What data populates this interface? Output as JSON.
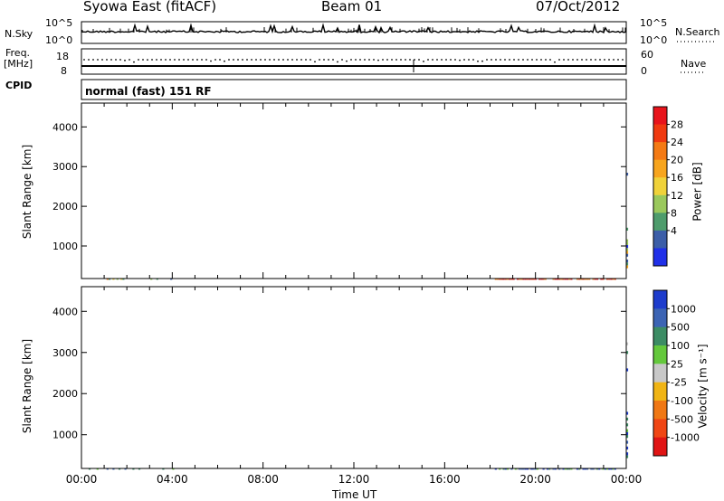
{
  "header": {
    "station": "Syowa East (fitACF)",
    "beam": "Beam 01",
    "date": "07/Oct/2012"
  },
  "noise_panel": {
    "left_label": "N.Sky",
    "right_label": "N.Search",
    "left_ticks": [
      "10^5",
      "10^0"
    ],
    "right_ticks": [
      "10^5",
      "10^0"
    ]
  },
  "freq_panel": {
    "left_label_line1": "Freq.",
    "left_label_line2": "[MHz]",
    "right_label": "Nave",
    "left_ticks": [
      "18",
      "8"
    ],
    "right_ticks": [
      "60",
      "0"
    ]
  },
  "cpid": {
    "label": "CPID",
    "mode_text": "normal (fast) 151 RF"
  },
  "chart_data": [
    {
      "type": "heatmap",
      "name": "power",
      "ylabel": "Slant Range [km]",
      "xlabel": "",
      "y_ticks": [
        1000,
        2000,
        3000,
        4000
      ],
      "ylim": [
        180,
        4600
      ],
      "xlim_hours": [
        0,
        24
      ],
      "colorbar_label": "Power [dB]",
      "colorbar_ticks": [
        "28",
        "24",
        "20",
        "16",
        "12",
        "8",
        "4"
      ],
      "colorbar_colors": [
        "#e8141c",
        "#f03a10",
        "#f47a14",
        "#f7a51e",
        "#f0d23a",
        "#9ac85c",
        "#4e9c6c",
        "#3c5ea8",
        "#2030e8"
      ]
    },
    {
      "type": "heatmap",
      "name": "velocity",
      "ylabel": "Slant Range [km]",
      "xlabel": "Time UT",
      "y_ticks": [
        1000,
        2000,
        3000,
        4000
      ],
      "ylim": [
        180,
        4600
      ],
      "xlim_hours": [
        0,
        24
      ],
      "colorbar_label": "Velocity [m s⁻¹]",
      "colorbar_ticks": [
        "1000",
        "500",
        "100",
        "25",
        "-25",
        "-100",
        "-500",
        "-1000"
      ],
      "colorbar_colors": [
        "#1e3ccc",
        "#3c64b4",
        "#3c8c64",
        "#64c83c",
        "#c8c8c8",
        "#f0b414",
        "#f07814",
        "#f04614",
        "#e01414"
      ]
    }
  ],
  "time_axis": {
    "ticks": [
      "00:00",
      "04:00",
      "08:00",
      "12:00",
      "16:00",
      "20:00",
      "00:00"
    ]
  }
}
